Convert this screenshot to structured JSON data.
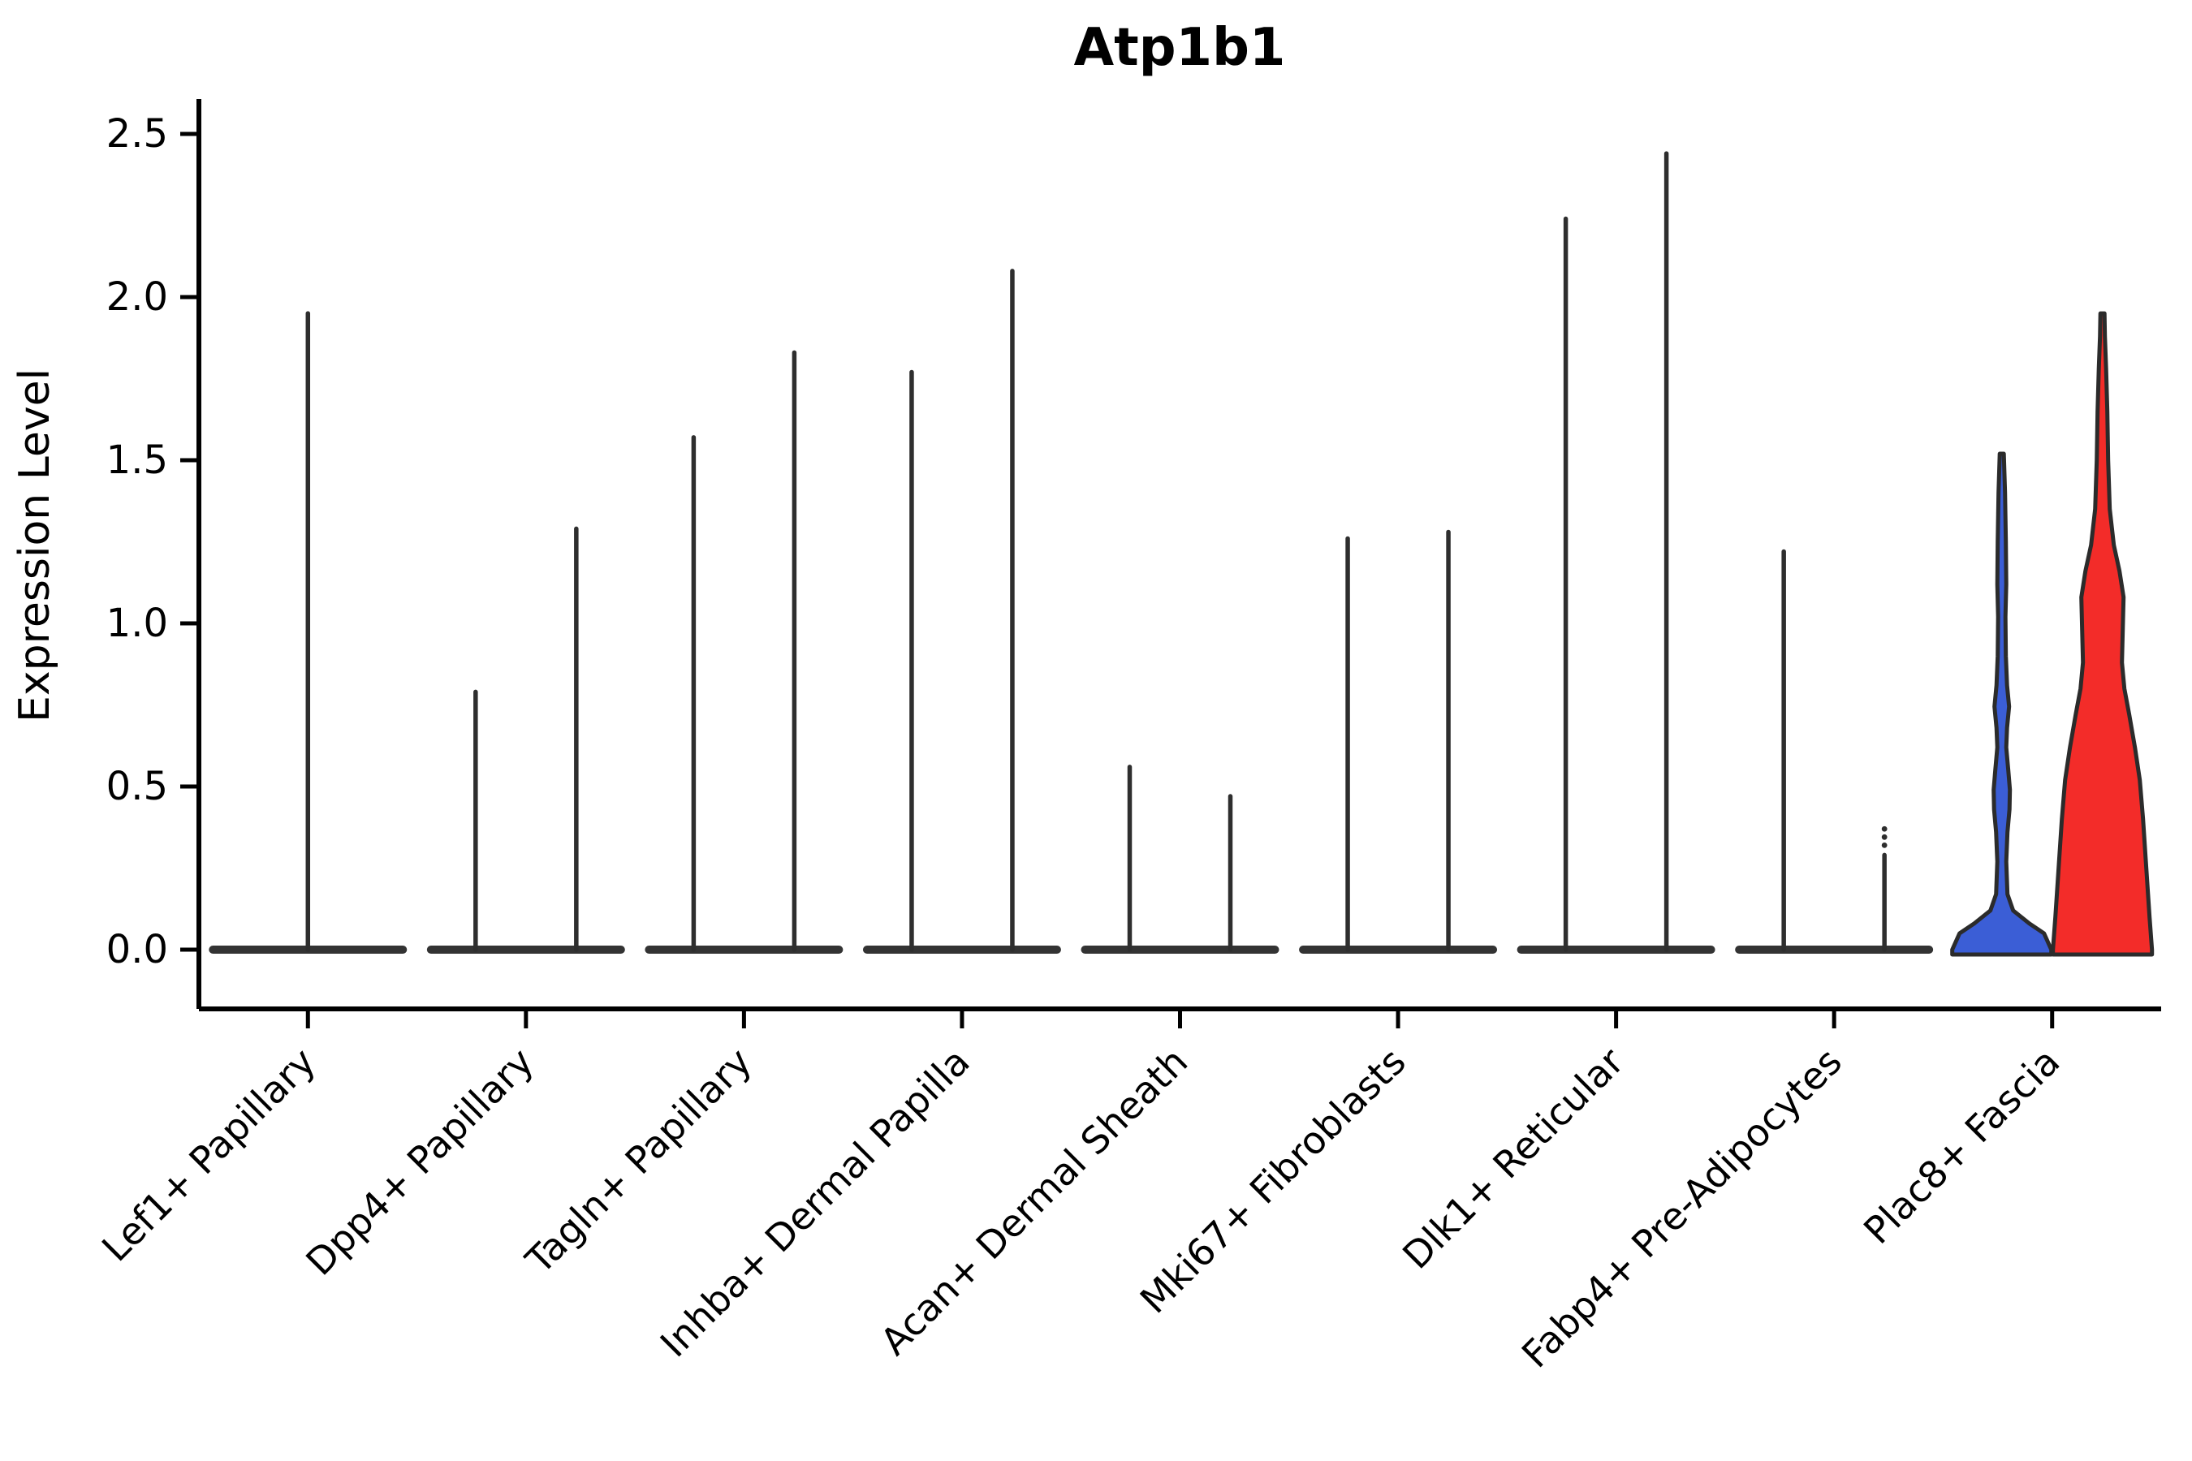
{
  "figure": {
    "background": "#ffffff",
    "outline_color": "#2b2b2b",
    "spike_color": "#2e2e2e",
    "base_bar_color": "#333333",
    "axis_color": "#000000"
  },
  "chart_data": {
    "type": "violin",
    "title": "Atp1b1",
    "xlabel": "",
    "ylabel": "Expression Level",
    "ylim": [
      0,
      2.5
    ],
    "yticks": [
      0.0,
      0.5,
      1.0,
      1.5,
      2.0,
      2.5
    ],
    "grid": false,
    "legend": "none",
    "categories": [
      "Lef1+ Papillary",
      "Dpp4+ Papillary",
      "Tagln+ Papillary",
      "Inhba+ Dermal Papilla",
      "Acan+ Dermal Sheath",
      "Mki67+ Fibroblasts",
      "Dlk1+ Reticular",
      "Fabp4+ Pre-Adipocytes",
      "Plac8+ Fascia"
    ],
    "violins": [
      {
        "category": 0,
        "position": "center",
        "max_expression": 1.95,
        "shape": "spike",
        "fill": "none"
      },
      {
        "category": 1,
        "position": "left",
        "max_expression": 0.79,
        "shape": "spike",
        "fill": "none"
      },
      {
        "category": 1,
        "position": "right",
        "max_expression": 1.29,
        "shape": "spike",
        "fill": "none"
      },
      {
        "category": 2,
        "position": "left",
        "max_expression": 1.57,
        "shape": "spike",
        "fill": "none"
      },
      {
        "category": 2,
        "position": "right",
        "max_expression": 1.83,
        "shape": "spike",
        "fill": "none"
      },
      {
        "category": 3,
        "position": "left",
        "max_expression": 1.77,
        "shape": "spike",
        "fill": "none"
      },
      {
        "category": 3,
        "position": "right",
        "max_expression": 2.08,
        "shape": "spike",
        "fill": "none"
      },
      {
        "category": 4,
        "position": "left",
        "max_expression": 0.56,
        "shape": "spike",
        "fill": "none"
      },
      {
        "category": 4,
        "position": "right",
        "max_expression": 0.47,
        "shape": "spike",
        "fill": "none"
      },
      {
        "category": 5,
        "position": "left",
        "max_expression": 1.26,
        "shape": "spike",
        "fill": "none"
      },
      {
        "category": 5,
        "position": "right",
        "max_expression": 1.28,
        "shape": "spike",
        "fill": "none"
      },
      {
        "category": 6,
        "position": "left",
        "max_expression": 2.24,
        "shape": "spike",
        "fill": "none"
      },
      {
        "category": 6,
        "position": "right",
        "max_expression": 2.44,
        "shape": "spike",
        "fill": "none"
      },
      {
        "category": 7,
        "position": "left",
        "max_expression": 1.22,
        "shape": "spike",
        "fill": "none"
      },
      {
        "category": 7,
        "position": "right",
        "max_expression": 0.37,
        "shape": "spike-dots",
        "fill": "none",
        "dot_values": [
          0.32,
          0.345,
          0.37
        ],
        "spike_top": 0.29
      },
      {
        "category": 8,
        "position": "left",
        "max_expression": 1.52,
        "shape": "density",
        "fill": "#3B5ED6",
        "profile": [
          [
            0,
            61
          ],
          [
            0.05,
            52
          ],
          [
            0.08,
            34
          ],
          [
            0.12,
            14
          ],
          [
            0.17,
            7
          ],
          [
            0.27,
            5.5
          ],
          [
            0.36,
            7
          ],
          [
            0.43,
            9.5
          ],
          [
            0.49,
            10
          ],
          [
            0.55,
            8
          ],
          [
            0.62,
            5.5
          ],
          [
            0.68,
            6.5
          ],
          [
            0.745,
            9
          ],
          [
            0.81,
            6.5
          ],
          [
            0.9,
            5
          ],
          [
            1.02,
            4.5
          ],
          [
            1.12,
            5.5
          ],
          [
            1.25,
            5
          ],
          [
            1.4,
            4
          ],
          [
            1.52,
            2.5
          ]
        ]
      },
      {
        "category": 8,
        "position": "right",
        "max_expression": 1.95,
        "shape": "density",
        "fill": "#F32C29",
        "profile": [
          [
            0,
            61
          ],
          [
            0.1,
            58
          ],
          [
            0.25,
            54
          ],
          [
            0.4,
            50
          ],
          [
            0.52,
            46
          ],
          [
            0.62,
            40
          ],
          [
            0.72,
            33
          ],
          [
            0.8,
            27
          ],
          [
            0.88,
            24
          ],
          [
            0.98,
            25
          ],
          [
            1.08,
            26
          ],
          [
            1.16,
            21
          ],
          [
            1.24,
            14
          ],
          [
            1.35,
            9
          ],
          [
            1.5,
            7
          ],
          [
            1.65,
            6
          ],
          [
            1.78,
            4.5
          ],
          [
            1.88,
            3
          ],
          [
            1.95,
            2.5
          ]
        ]
      }
    ]
  }
}
